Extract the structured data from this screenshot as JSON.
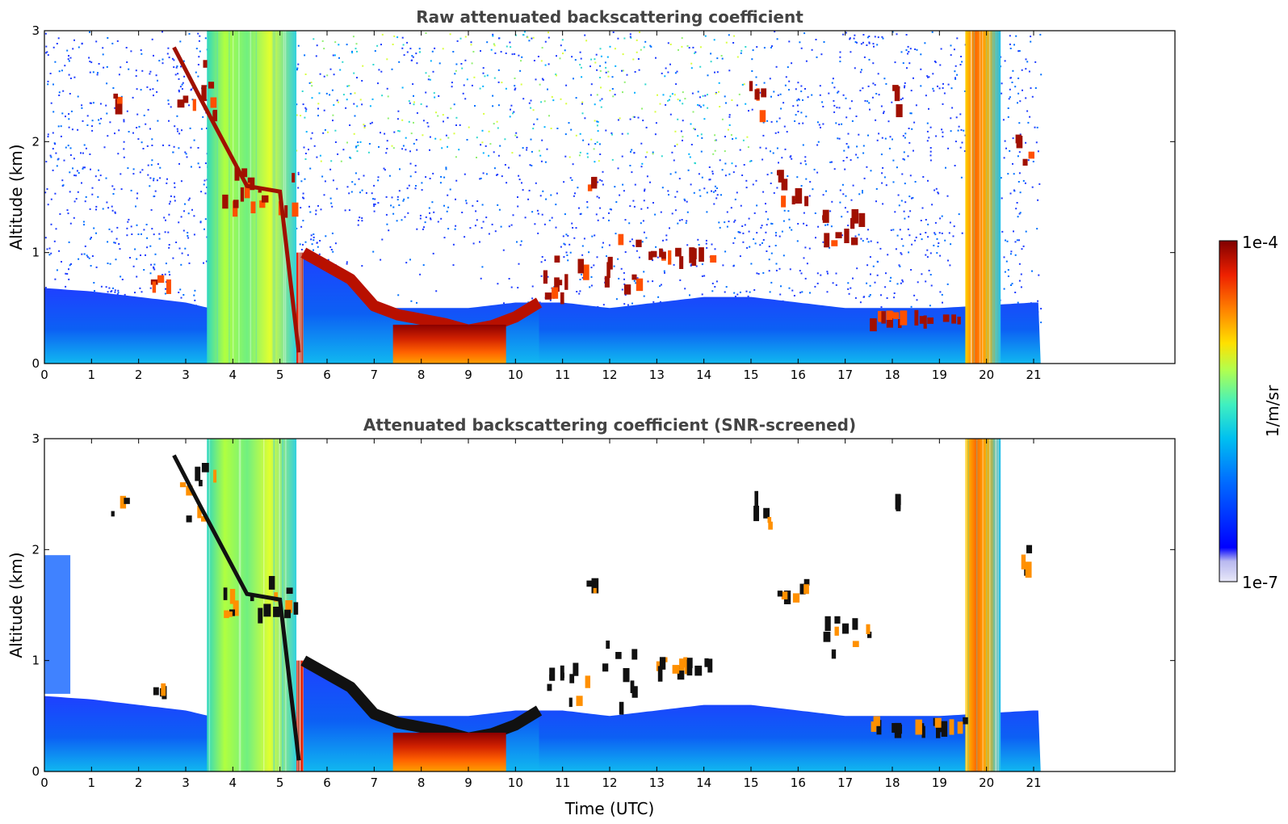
{
  "chart_data": [
    {
      "type": "heatmap",
      "title": "Raw attenuated backscattering coefficient",
      "xlabel": "",
      "ylabel": "Altitude (km)",
      "xlim": [
        0,
        24
      ],
      "ylim": [
        0,
        3
      ],
      "xticks": [
        "0",
        "1",
        "2",
        "3",
        "4",
        "5",
        "6",
        "7",
        "8",
        "9",
        "10",
        "11",
        "12",
        "13",
        "14",
        "15",
        "16",
        "17",
        "18",
        "19",
        "20",
        "21"
      ],
      "yticks": [
        "0",
        "1",
        "2",
        "3"
      ],
      "data_extent_x": [
        0,
        21.15
      ],
      "layers": {
        "boundary_layer_top_km": [
          [
            0,
            0.68
          ],
          [
            1,
            0.65
          ],
          [
            2,
            0.6
          ],
          [
            3,
            0.55
          ],
          [
            3.5,
            0.5
          ],
          [
            6,
            0.55
          ],
          [
            7,
            0.5
          ],
          [
            8,
            0.5
          ],
          [
            9,
            0.5
          ],
          [
            10,
            0.55
          ],
          [
            11,
            0.55
          ],
          [
            12,
            0.5
          ],
          [
            13,
            0.55
          ],
          [
            14,
            0.6
          ],
          [
            15,
            0.6
          ],
          [
            16,
            0.55
          ],
          [
            17,
            0.5
          ],
          [
            18,
            0.5
          ],
          [
            19,
            0.5
          ],
          [
            21,
            0.55
          ]
        ],
        "aerosol_layer_top_km": [
          [
            5.5,
            1.0
          ],
          [
            6,
            0.88
          ],
          [
            6.5,
            0.76
          ],
          [
            7,
            0.52
          ],
          [
            7.5,
            0.44
          ],
          [
            8,
            0.4
          ],
          [
            8.5,
            0.36
          ],
          [
            9,
            0.3
          ],
          [
            9.5,
            0.34
          ],
          [
            10,
            0.42
          ],
          [
            10.5,
            0.55
          ]
        ],
        "cloud_segments": [
          {
            "x": [
              1.4,
              1.7
            ],
            "y": [
              2.3,
              2.5
            ]
          },
          {
            "x": [
              2.2,
              2.6
            ],
            "y": [
              0.7,
              0.8
            ]
          },
          {
            "x": [
              2.7,
              3.6
            ],
            "y": [
              2.2,
              2.8
            ]
          },
          {
            "x": [
              3.7,
              5.3
            ],
            "y": [
              1.4,
              1.8
            ]
          },
          {
            "x": [
              10.5,
              11.5
            ],
            "y": [
              0.6,
              1.0
            ]
          },
          {
            "x": [
              11.5,
              11.8
            ],
            "y": [
              1.6,
              1.75
            ]
          },
          {
            "x": [
              11.8,
              12.6
            ],
            "y": [
              0.6,
              1.2
            ]
          },
          {
            "x": [
              12.8,
              14.2
            ],
            "y": [
              0.95,
              1.05
            ]
          },
          {
            "x": [
              14.9,
              15.4
            ],
            "y": [
              2.2,
              2.55
            ]
          },
          {
            "x": [
              15.5,
              16.2
            ],
            "y": [
              1.5,
              1.75
            ]
          },
          {
            "x": [
              16.5,
              17.5
            ],
            "y": [
              1.1,
              1.4
            ]
          },
          {
            "x": [
              17.5,
              19.5
            ],
            "y": [
              0.4,
              0.5
            ]
          },
          {
            "x": [
              18.0,
              18.2
            ],
            "y": [
              2.3,
              2.6
            ]
          },
          {
            "x": [
              20.6,
              21.0
            ],
            "y": [
              1.8,
              2.1
            ]
          }
        ],
        "precipitation_bands": [
          {
            "x": [
              3.45,
              5.35
            ],
            "y": [
              0,
              3
            ]
          },
          {
            "x": [
              5.35,
              5.6
            ],
            "y": [
              0,
              1.0
            ]
          },
          {
            "x": [
              19.55,
              20.3
            ],
            "y": [
              0,
              3
            ]
          }
        ]
      }
    },
    {
      "type": "heatmap",
      "title": "Attenuated backscattering coefficient (SNR-screened)",
      "xlabel": "Time (UTC)",
      "ylabel": "Altitude (km)",
      "xlim": [
        0,
        24
      ],
      "ylim": [
        0,
        3
      ],
      "xticks": [
        "0",
        "1",
        "2",
        "3",
        "4",
        "5",
        "6",
        "7",
        "8",
        "9",
        "10",
        "11",
        "12",
        "13",
        "14",
        "15",
        "16",
        "17",
        "18",
        "19",
        "20",
        "21"
      ],
      "yticks": [
        "0",
        "1",
        "2",
        "3"
      ],
      "data_extent_x": [
        0,
        21.15
      ]
    }
  ],
  "colorbar": {
    "max_label": "1e-4",
    "min_label": "1e-7",
    "unit_label": "1/m/sr",
    "scale": "log",
    "range": [
      1e-07,
      0.0001
    ],
    "colormap": "jet",
    "colors": [
      "#e8e8f8",
      "#c8c8f0",
      "#0000ff",
      "#0060ff",
      "#00b0ff",
      "#20e8d0",
      "#80ff80",
      "#e0ff20",
      "#ffc000",
      "#ff6000",
      "#e01000",
      "#800000"
    ]
  }
}
